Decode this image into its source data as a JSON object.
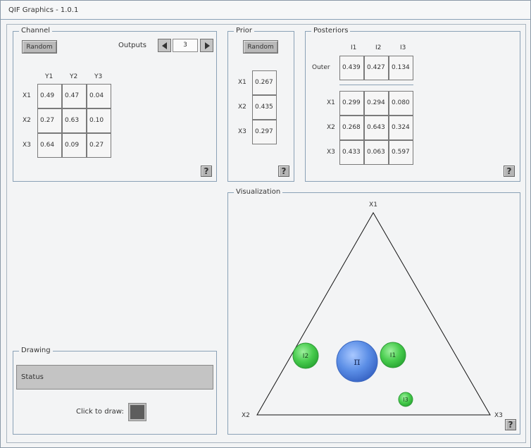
{
  "window": {
    "title": "QIF Graphics - 1.0.1"
  },
  "channel": {
    "legend": "Channel",
    "random_label": "Random",
    "outputs_label": "Outputs",
    "outputs_value": "3",
    "columns": [
      "Y1",
      "Y2",
      "Y3"
    ],
    "rows": [
      {
        "label": "X1",
        "values": [
          "0.49",
          "0.47",
          "0.04"
        ]
      },
      {
        "label": "X2",
        "values": [
          "0.27",
          "0.63",
          "0.10"
        ]
      },
      {
        "label": "X3",
        "values": [
          "0.64",
          "0.09",
          "0.27"
        ]
      }
    ],
    "help_label": "?"
  },
  "prior": {
    "legend": "Prior",
    "random_label": "Random",
    "rows": [
      {
        "label": "X1",
        "value": "0.267"
      },
      {
        "label": "X2",
        "value": "0.435"
      },
      {
        "label": "X3",
        "value": "0.297"
      }
    ],
    "help_label": "?"
  },
  "posteriors": {
    "legend": "Posteriors",
    "columns": [
      "I1",
      "I2",
      "I3"
    ],
    "outer": {
      "label": "Outer",
      "values": [
        "0.439",
        "0.427",
        "0.134"
      ]
    },
    "rows": [
      {
        "label": "X1",
        "values": [
          "0.299",
          "0.294",
          "0.080"
        ]
      },
      {
        "label": "X2",
        "values": [
          "0.268",
          "0.643",
          "0.324"
        ]
      },
      {
        "label": "X3",
        "values": [
          "0.433",
          "0.063",
          "0.597"
        ]
      }
    ],
    "help_label": "?"
  },
  "drawing": {
    "legend": "Drawing",
    "status_text": "Status",
    "click_to_draw_label": "Click to draw:"
  },
  "visualization": {
    "legend": "Visualization",
    "vertices": {
      "top": "X1",
      "left": "X2",
      "right": "X3"
    },
    "points": [
      {
        "label": "π",
        "kind": "prior",
        "color": "#4a7fd8"
      },
      {
        "label": "I1",
        "kind": "posterior",
        "color": "#3cc24a"
      },
      {
        "label": "I2",
        "kind": "posterior",
        "color": "#3cc24a"
      },
      {
        "label": "I3",
        "kind": "posterior",
        "color": "#3cc24a"
      }
    ],
    "help_label": "?"
  },
  "colors": {
    "border": "#8aa1b6",
    "cell_border": "#7a7a7a",
    "button": "#b9b9b9",
    "prior_circle": "#4a7fd8",
    "posterior_circle": "#3cc24a"
  }
}
